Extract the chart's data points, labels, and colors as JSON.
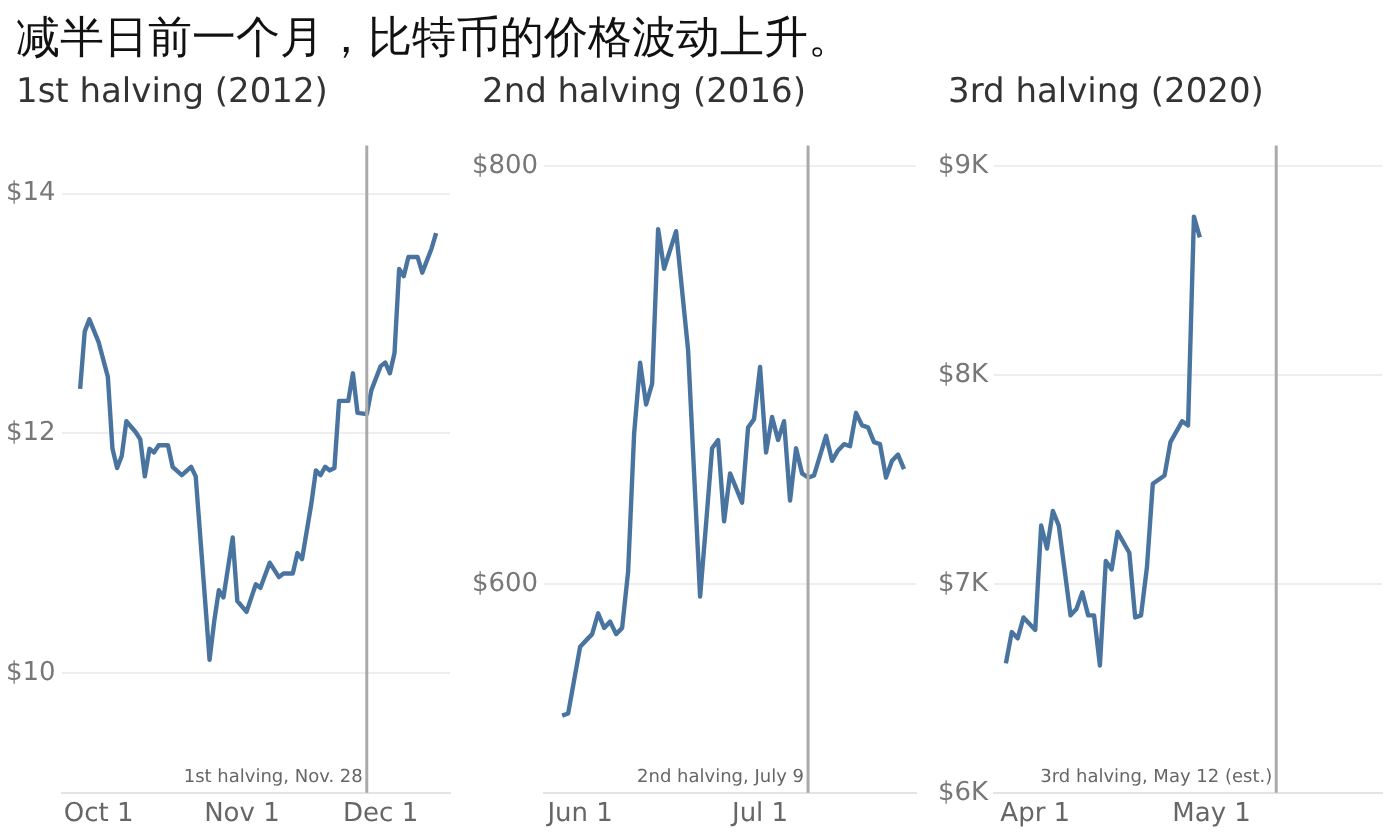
{
  "chart_data": [
    {
      "type": "line",
      "title": "减半日前一个月，比特币的价格波动上升。",
      "subtitle": "1st halving (2012)",
      "color": "#4a74a0",
      "grid": "y",
      "x": [
        "2012-09-27",
        "2012-09-28",
        "2012-09-29",
        "2012-10-01",
        "2012-10-03",
        "2012-10-04",
        "2012-10-05",
        "2012-10-06",
        "2012-10-07",
        "2012-10-09",
        "2012-10-10",
        "2012-10-11",
        "2012-10-12",
        "2012-10-13",
        "2012-10-14",
        "2012-10-16",
        "2012-10-17",
        "2012-10-19",
        "2012-10-21",
        "2012-10-22",
        "2012-10-25",
        "2012-10-26",
        "2012-10-27",
        "2012-10-28",
        "2012-10-30",
        "2012-10-31",
        "2012-11-02",
        "2012-11-04",
        "2012-11-05",
        "2012-11-07",
        "2012-11-09",
        "2012-11-10",
        "2012-11-12",
        "2012-11-13",
        "2012-11-14",
        "2012-11-16",
        "2012-11-17",
        "2012-11-18",
        "2012-11-19",
        "2012-11-20",
        "2012-11-21",
        "2012-11-22",
        "2012-11-24",
        "2012-11-25",
        "2012-11-26",
        "2012-11-28",
        "2012-11-29",
        "2012-12-01",
        "2012-12-02",
        "2012-12-03",
        "2012-12-04",
        "2012-12-05",
        "2012-12-06",
        "2012-12-07",
        "2012-12-09",
        "2012-12-10",
        "2012-12-12",
        "2012-12-13"
      ],
      "values": [
        12.37,
        12.85,
        12.95,
        12.76,
        12.47,
        11.87,
        11.71,
        11.81,
        12.1,
        12.01,
        11.95,
        11.64,
        11.87,
        11.84,
        11.9,
        11.9,
        11.72,
        11.65,
        11.72,
        11.64,
        10.11,
        10.43,
        10.69,
        10.63,
        11.13,
        10.6,
        10.51,
        10.74,
        10.71,
        10.92,
        10.8,
        10.83,
        10.83,
        11.0,
        10.95,
        11.41,
        11.69,
        11.65,
        11.72,
        11.69,
        11.71,
        12.27,
        12.27,
        12.5,
        12.17,
        12.16,
        12.36,
        12.56,
        12.59,
        12.5,
        12.67,
        13.37,
        13.31,
        13.47,
        13.47,
        13.34,
        13.54,
        13.67
      ],
      "xlim": [
        "2012-09-23",
        "2012-12-16"
      ],
      "xticks": [
        {
          "value": "2012-10-01",
          "label": "Oct 1"
        },
        {
          "value": "2012-11-01",
          "label": "Nov 1"
        },
        {
          "value": "2012-12-01",
          "label": "Dec 1"
        }
      ],
      "ylim": [
        9,
        14.4
      ],
      "yticks": [
        {
          "value": 10,
          "label": "$10"
        },
        {
          "value": 12,
          "label": "$12"
        },
        {
          "value": 14,
          "label": "$14"
        }
      ],
      "ref_lines": [
        {
          "axis": "x",
          "value": "2012-11-28",
          "label": "1st halving, Nov. 28",
          "color": "#aaaaaa"
        }
      ]
    },
    {
      "type": "line",
      "subtitle": "2nd halving (2016)",
      "color": "#4a74a0",
      "grid": "y",
      "x": [
        "2016-05-29",
        "2016-05-30",
        "2016-06-01",
        "2016-06-02",
        "2016-06-03",
        "2016-06-04",
        "2016-06-05",
        "2016-06-06",
        "2016-06-07",
        "2016-06-08",
        "2016-06-09",
        "2016-06-10",
        "2016-06-11",
        "2016-06-12",
        "2016-06-13",
        "2016-06-14",
        "2016-06-15",
        "2016-06-17",
        "2016-06-19",
        "2016-06-21",
        "2016-06-22",
        "2016-06-23",
        "2016-06-24",
        "2016-06-25",
        "2016-06-26",
        "2016-06-28",
        "2016-06-29",
        "2016-06-30",
        "2016-07-01",
        "2016-07-02",
        "2016-07-03",
        "2016-07-04",
        "2016-07-05",
        "2016-07-06",
        "2016-07-07",
        "2016-07-08",
        "2016-07-09",
        "2016-07-10",
        "2016-07-12",
        "2016-07-13",
        "2016-07-14",
        "2016-07-15",
        "2016-07-16",
        "2016-07-17",
        "2016-07-18",
        "2016-07-19",
        "2016-07-20",
        "2016-07-21",
        "2016-07-22",
        "2016-07-23",
        "2016-07-24",
        "2016-07-25"
      ],
      "values": [
        537,
        538,
        570,
        573,
        576,
        586,
        579,
        582,
        576,
        579,
        606,
        672,
        706,
        686,
        696,
        770,
        751,
        769,
        712,
        594,
        629,
        665,
        669,
        630,
        653,
        639,
        675,
        679,
        704,
        663,
        680,
        669,
        678,
        640,
        665,
        653,
        651,
        652,
        671,
        659,
        664,
        667,
        666,
        682,
        676,
        675,
        668,
        667,
        651,
        659,
        662,
        655
      ],
      "xlim": [
        "2016-05-26",
        "2016-07-27"
      ],
      "xticks": [
        {
          "value": "2016-06-01",
          "label": "Jun 1"
        },
        {
          "value": "2016-07-01",
          "label": "Jul 1"
        }
      ],
      "ylim": [
        500,
        810
      ],
      "yticks": [
        {
          "value": 600,
          "label": "$600"
        },
        {
          "value": 800,
          "label": "$800"
        }
      ],
      "ref_lines": [
        {
          "axis": "x",
          "value": "2016-07-09",
          "label": "2nd halving, July 9",
          "color": "#aaaaaa"
        }
      ]
    },
    {
      "type": "line",
      "subtitle": "3rd halving (2020)",
      "color": "#4a74a0",
      "grid": "y",
      "x": [
        "2020-03-27",
        "2020-03-28",
        "2020-03-29",
        "2020-03-30",
        "2020-04-01",
        "2020-04-02",
        "2020-04-03",
        "2020-04-04",
        "2020-04-05",
        "2020-04-07",
        "2020-04-08",
        "2020-04-09",
        "2020-04-10",
        "2020-04-11",
        "2020-04-12",
        "2020-04-13",
        "2020-04-14",
        "2020-04-15",
        "2020-04-17",
        "2020-04-18",
        "2020-04-19",
        "2020-04-20",
        "2020-04-21",
        "2020-04-23",
        "2020-04-24",
        "2020-04-26",
        "2020-04-27",
        "2020-04-28",
        "2020-04-29"
      ],
      "values": [
        6620,
        6770,
        6740,
        6840,
        6780,
        7280,
        7170,
        7350,
        7280,
        6850,
        6880,
        6960,
        6850,
        6850,
        6610,
        7110,
        7070,
        7250,
        7150,
        6840,
        6850,
        7080,
        7480,
        7520,
        7680,
        7780,
        7760,
        8760,
        8660
      ],
      "xlim": [
        "2020-03-25",
        "2020-05-30"
      ],
      "xticks": [
        {
          "value": "2020-04-01",
          "label": "Apr 1"
        },
        {
          "value": "2020-05-01",
          "label": "May 1"
        }
      ],
      "ylim": [
        6000,
        9100
      ],
      "yticks": [
        {
          "value": 6000,
          "label": "$6K"
        },
        {
          "value": 7000,
          "label": "$7K"
        },
        {
          "value": 8000,
          "label": "$8K"
        },
        {
          "value": 9000,
          "label": "$9K"
        }
      ],
      "ref_lines": [
        {
          "axis": "x",
          "value": "2020-05-12",
          "label": "3rd halving, May 12 (est.)",
          "color": "#aaaaaa"
        }
      ]
    }
  ]
}
